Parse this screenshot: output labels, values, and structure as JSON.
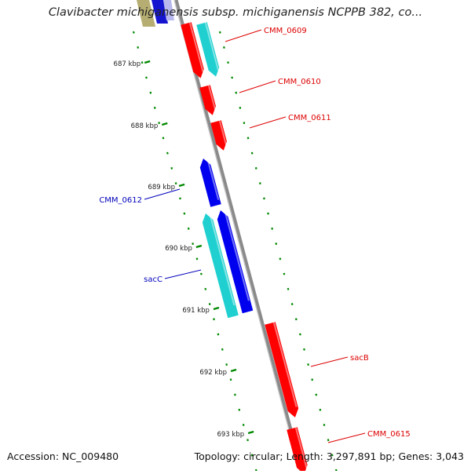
{
  "title": "Clavibacter michiganensis subsp. michiganensis NCPPB 382, co...",
  "footer": {
    "accession": "Accession: NC_009480",
    "topology": "Topology: circular; Length: 3,297,891 bp; Genes: 3,043"
  },
  "colors": {
    "forward_cds": "#ff0000",
    "reverse_cds": "#0000ee",
    "forward_rna": "#00cccc",
    "reverse_rna": "#00cccc",
    "backbone": "#888888",
    "ticks": "#008800",
    "forward_label": "#dd0000",
    "reverse_label": "#0000bb"
  },
  "ruler": [
    {
      "label": "687 kbp"
    },
    {
      "label": "688 kbp"
    },
    {
      "label": "689 kbp"
    },
    {
      "label": "690 kbp"
    },
    {
      "label": "691 kbp"
    },
    {
      "label": "692 kbp"
    },
    {
      "label": "693 kbp"
    }
  ],
  "genes": [
    {
      "label": "CMM_0609",
      "strand": "forward"
    },
    {
      "label": "CMM_0610",
      "strand": "forward"
    },
    {
      "label": "CMM_0611",
      "strand": "forward"
    },
    {
      "label": "CMM_0612",
      "strand": "reverse"
    },
    {
      "label": "sacC",
      "strand": "reverse"
    },
    {
      "label": "sacB",
      "strand": "forward"
    },
    {
      "label": "CMM_0615",
      "strand": "forward"
    }
  ]
}
